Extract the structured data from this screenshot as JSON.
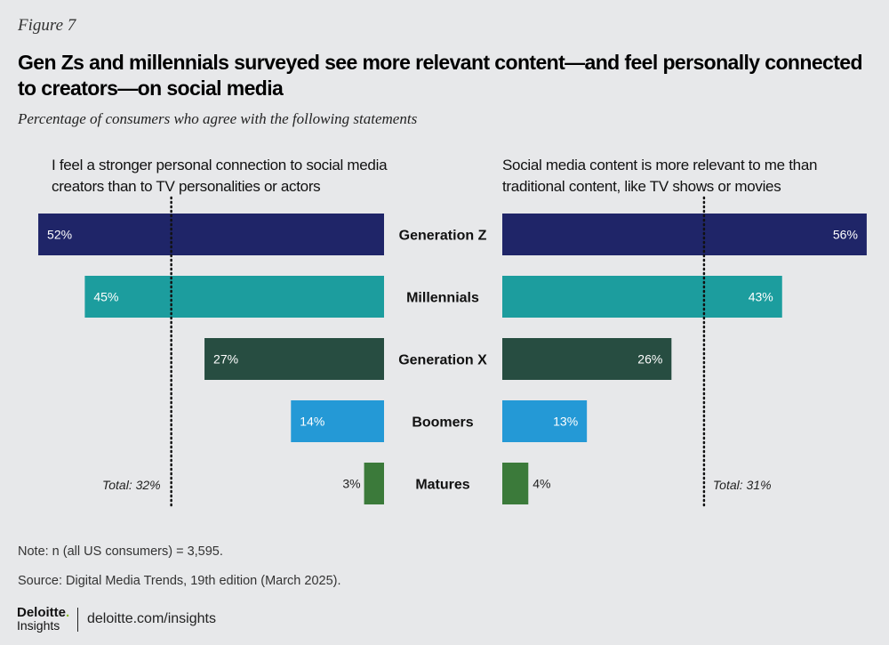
{
  "figure_label": "Figure 7",
  "title": "Gen Zs and millennials surveyed see more relevant content—and feel personally connected to creators—on social media",
  "subtitle": "Percentage of consumers who agree with the following statements",
  "chart_data": {
    "type": "bar",
    "categories": [
      "Generation Z",
      "Millennials",
      "Generation X",
      "Boomers",
      "Matures"
    ],
    "colors": [
      "#1f2568",
      "#1c9d9e",
      "#274d41",
      "#2499d6",
      "#3b7a3a"
    ],
    "series": [
      {
        "name": "I feel a stronger personal connection to social media creators than to TV personalities or actors",
        "values": [
          52,
          45,
          27,
          14,
          3
        ],
        "total": 32,
        "total_label": "Total: 32%",
        "direction": "left"
      },
      {
        "name": "Social media content is more relevant to me than traditional content, like TV shows or movies",
        "values": [
          56,
          43,
          26,
          13,
          4
        ],
        "total": 31,
        "total_label": "Total: 31%",
        "direction": "right"
      }
    ],
    "value_suffix": "%"
  },
  "note": "Note: n (all US consumers) = 3,595.",
  "source": "Source: Digital Media Trends, 19th edition (March 2025).",
  "logo": {
    "brand": "Deloitte.",
    "sub": "Insights"
  },
  "url": "deloitte.com/insights"
}
